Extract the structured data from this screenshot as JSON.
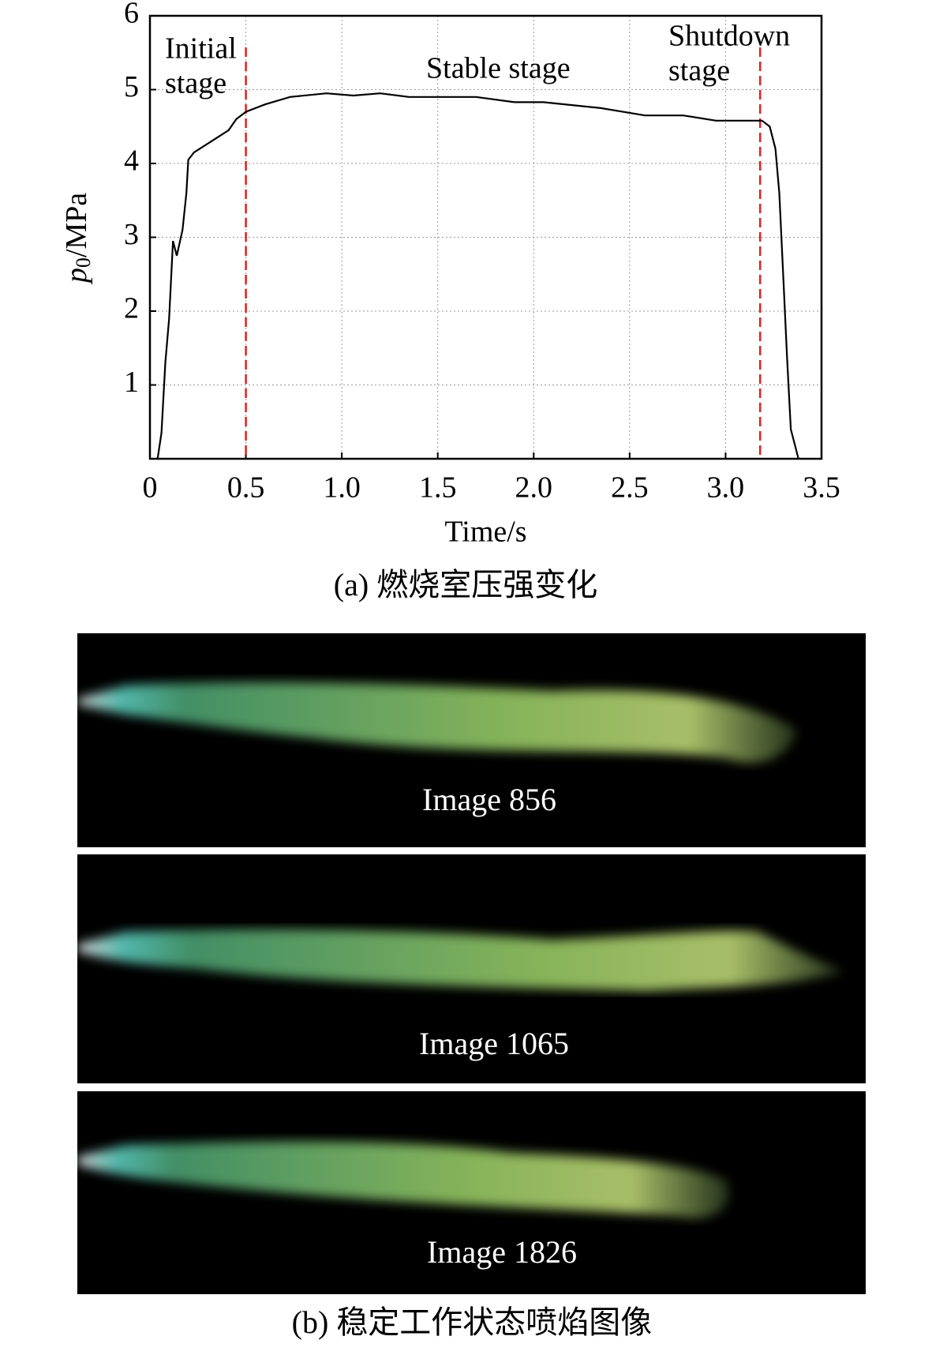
{
  "chart_data": {
    "type": "line",
    "x_label": "Time/s",
    "y_label": [
      "p",
      "0",
      "/MPa"
    ],
    "x": [
      0.04,
      0.06,
      0.08,
      0.1,
      0.12,
      0.14,
      0.17,
      0.19,
      0.2,
      0.23,
      0.35,
      0.41,
      0.45,
      0.5,
      0.6,
      0.73,
      0.92,
      1.06,
      1.2,
      1.35,
      1.7,
      1.9,
      2.05,
      2.35,
      2.58,
      2.78,
      2.95,
      3.19,
      3.23,
      3.26,
      3.28,
      3.3,
      3.32,
      3.34,
      3.38
    ],
    "values": [
      0,
      0.35,
      1.3,
      1.9,
      2.95,
      2.75,
      3.1,
      3.6,
      4.05,
      4.15,
      4.35,
      4.45,
      4.6,
      4.7,
      4.8,
      4.9,
      4.95,
      4.92,
      4.95,
      4.9,
      4.9,
      4.83,
      4.83,
      4.75,
      4.65,
      4.65,
      4.58,
      4.58,
      4.5,
      4.2,
      3.6,
      2.5,
      1.4,
      0.4,
      0
    ],
    "color": "#000000",
    "xlim": [
      0,
      3.5
    ],
    "xticks": [
      0,
      0.5,
      {
        "value": 1,
        "label": "1.0"
      },
      1.5,
      {
        "value": 2,
        "label": "2.0"
      },
      2.5,
      {
        "value": 3,
        "label": "3.0"
      },
      3.5
    ],
    "ylim": [
      0,
      6
    ],
    "yticks": [
      1,
      2,
      3,
      4,
      5,
      6
    ],
    "grid": true,
    "reference_lines": {
      "x": [
        0.5,
        3.18
      ],
      "color": "#e02020"
    },
    "annotations": [
      {
        "lines": [
          "Initial",
          "stage"
        ]
      },
      {
        "lines": [
          "Stable stage"
        ]
      },
      {
        "lines": [
          "Shutdown",
          "stage"
        ]
      }
    ]
  },
  "caption_a": "(a) 燃烧室压强变化",
  "panels": [
    "Image 856",
    "Image 1065",
    "Image 1826"
  ],
  "caption_b": "(b) 稳定工作状态喷焰图像"
}
